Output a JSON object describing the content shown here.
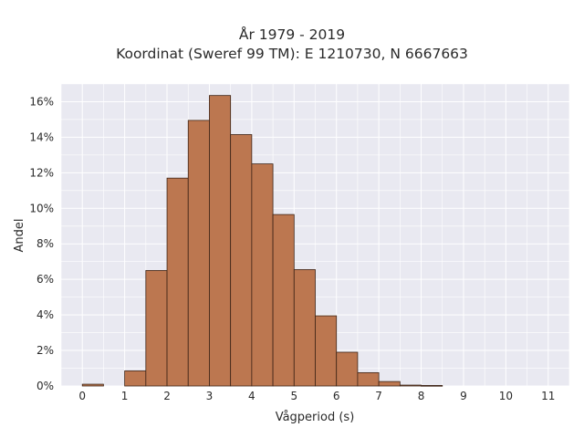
{
  "chart_data": {
    "type": "bar",
    "title_line1": "År 1979 - 2019",
    "title_line2": "Koordinat (Sweref 99 TM): E 1210730, N 6667663",
    "xlabel": "Vågperiod (s)",
    "ylabel": "Andel",
    "bin_width": 0.5,
    "bins": [
      {
        "start": 0.0,
        "value": 0.1
      },
      {
        "start": 0.5,
        "value": 0.0
      },
      {
        "start": 1.0,
        "value": 0.85
      },
      {
        "start": 1.5,
        "value": 6.5
      },
      {
        "start": 2.0,
        "value": 11.7
      },
      {
        "start": 2.5,
        "value": 14.95
      },
      {
        "start": 3.0,
        "value": 16.35
      },
      {
        "start": 3.5,
        "value": 14.15
      },
      {
        "start": 4.0,
        "value": 12.5
      },
      {
        "start": 4.5,
        "value": 9.65
      },
      {
        "start": 5.0,
        "value": 6.55
      },
      {
        "start": 5.5,
        "value": 3.95
      },
      {
        "start": 6.0,
        "value": 1.9
      },
      {
        "start": 6.5,
        "value": 0.75
      },
      {
        "start": 7.0,
        "value": 0.25
      },
      {
        "start": 7.5,
        "value": 0.05
      },
      {
        "start": 8.0,
        "value": 0.03
      }
    ],
    "xlim": [
      -0.5,
      11.5
    ],
    "ylim": [
      0,
      17
    ],
    "xticks": [
      "0",
      "1",
      "2",
      "3",
      "4",
      "5",
      "6",
      "7",
      "8",
      "9",
      "10",
      "11"
    ],
    "yticks": [
      "0%",
      "2%",
      "4%",
      "6%",
      "8%",
      "10%",
      "12%",
      "14%",
      "16%"
    ],
    "grid": true,
    "colors": {
      "bar_fill": "#bc7750",
      "bar_edge": "#3d2416",
      "plot_bg": "#e9e9f1",
      "grid": "#ffffff"
    }
  }
}
